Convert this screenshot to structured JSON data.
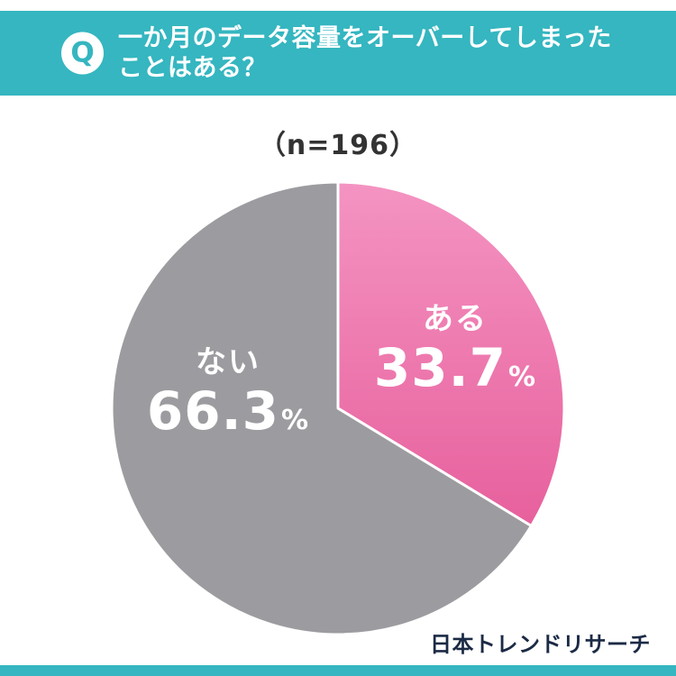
{
  "header": {
    "badge": "Q",
    "title_line1": "一か月のデータ容量をオーバーしてしまった",
    "title_line2": "ことはある？"
  },
  "sample_label": "（n=196）",
  "chart_data": {
    "type": "pie",
    "title": "一か月のデータ容量をオーバーしてしまったことはある？",
    "n": 196,
    "start_angle_deg": -90,
    "direction": "clockwise",
    "percent_sign": "%",
    "segments": [
      {
        "label": "ある",
        "value": 33.7,
        "display": "33.7",
        "color_top": "#f494c2",
        "color_bottom": "#e7609d"
      },
      {
        "label": "ない",
        "value": 66.3,
        "display": "66.3",
        "color_top": "#9c9ca0",
        "color_bottom": "#9c9ca0"
      }
    ]
  },
  "footer": {
    "source": "日本トレンドリサーチ"
  },
  "colors": {
    "accent_teal": "#35b6c0",
    "pink": "#ec6fa8",
    "gray": "#9c9ca0",
    "text_dark": "#333333",
    "brand_navy": "#1b2a45",
    "label_white": "#ffffff"
  }
}
